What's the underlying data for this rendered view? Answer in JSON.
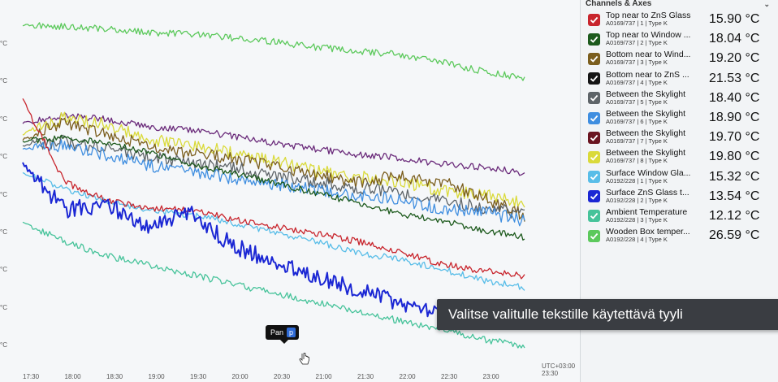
{
  "panel": {
    "title": "Channels & Axes",
    "chevron_icon": "chevron-down-icon",
    "channels": [
      {
        "name": "Top near to ZnS Glass",
        "sub": "A0169/737 | 1 | Type K",
        "value": "15.90 °C",
        "color": "#c8252d"
      },
      {
        "name": "Top near to Window ...",
        "sub": "A0169/737 | 2 | Type K",
        "value": "18.04 °C",
        "color": "#1d5a1d"
      },
      {
        "name": "Bottom near to Wind...",
        "sub": "A0169/737 | 3 | Type K",
        "value": "19.20 °C",
        "color": "#7b5e1e"
      },
      {
        "name": "Bottom near to ZnS ...",
        "sub": "A0169/737 | 4 | Type K",
        "value": "21.53 °C",
        "color": "#141414"
      },
      {
        "name": "Between the Skylight",
        "sub": "A0169/737 | 5 | Type K",
        "value": "18.40 °C",
        "color": "#5e6468"
      },
      {
        "name": "Between the Skylight",
        "sub": "A0169/737 | 6 | Type K",
        "value": "18.90 °C",
        "color": "#3f8ee0"
      },
      {
        "name": "Between the Skylight",
        "sub": "A0169/737 | 7 | Type K",
        "value": "19.70 °C",
        "color": "#6a1420"
      },
      {
        "name": "Between the Skylight",
        "sub": "A0169/737 | 8 | Type K",
        "value": "19.80 °C",
        "color": "#dada3a"
      },
      {
        "name": "Surface Window Gla...",
        "sub": "A0192/228 | 1 | Type K",
        "value": "15.32 °C",
        "color": "#58bde8"
      },
      {
        "name": "Surface ZnS Glass t...",
        "sub": "A0192/228 | 2 | Type K",
        "value": "13.54 °C",
        "color": "#1b27d4"
      },
      {
        "name": "Ambient Temperature",
        "sub": "A0192/228 | 3 | Type K",
        "value": "12.12 °C",
        "color": "#46c39a"
      },
      {
        "name": "Wooden Box temper...",
        "sub": "A0192/228 | 4 | Type K",
        "value": "26.59 °C",
        "color": "#5cc95c"
      }
    ]
  },
  "tooltip": "Valitse valitulle tekstille käytettävä tyyli",
  "pan": {
    "label": "Pan",
    "key": "p"
  },
  "chart_data": {
    "type": "line",
    "x": [
      "17:30",
      "18:00",
      "18:30",
      "19:00",
      "19:30",
      "20:00",
      "20:30",
      "21:00",
      "21:30",
      "22:00",
      "22:30",
      "23:00",
      "23:20"
    ],
    "x_tick_labels": [
      "17:30",
      "18:00",
      "18:30",
      "19:00",
      "19:30",
      "20:00",
      "20:30",
      "21:00",
      "21:30",
      "22:00",
      "22:30",
      "23:00"
    ],
    "x_end_label": [
      "UTC+03:00",
      "23:30"
    ],
    "y_tick_labels": [
      "°C",
      "°C",
      "°C",
      "°C",
      "°C",
      "°C",
      "°C",
      "°C",
      "°C",
      "°C"
    ],
    "series": [
      {
        "name": "Wooden Box temper...",
        "color": "#5cc95c",
        "values": [
          29.5,
          29.4,
          29.3,
          29.1,
          29.0,
          28.8,
          28.6,
          28.3,
          28.1,
          27.9,
          27.5,
          27.0,
          26.6
        ]
      },
      {
        "name": "Bottom near to ZnS ...",
        "color": "#6a2a7a",
        "values": [
          24.2,
          24.6,
          24.4,
          24.0,
          23.8,
          23.5,
          23.1,
          22.8,
          22.5,
          22.3,
          22.0,
          21.8,
          21.5
        ]
      },
      {
        "name": "Between the Skylight",
        "color": "#dada3a",
        "values": [
          23.6,
          24.5,
          24.1,
          23.3,
          23.0,
          22.6,
          22.2,
          21.6,
          21.3,
          21.0,
          20.6,
          20.3,
          19.8
        ]
      },
      {
        "name": "Bottom near to Wind...",
        "color": "#7b5e1e",
        "values": [
          23.3,
          24.2,
          23.6,
          23.0,
          22.5,
          22.3,
          21.9,
          21.4,
          21.0,
          21.3,
          21.0,
          20.2,
          19.2
        ]
      },
      {
        "name": "Between the Skylight",
        "color": "#5e6468",
        "values": [
          23.0,
          23.2,
          22.8,
          22.4,
          22.0,
          21.8,
          21.4,
          21.0,
          20.7,
          20.4,
          20.0,
          19.6,
          19.3
        ]
      },
      {
        "name": "Between the Skylight",
        "color": "#3f8ee0",
        "values": [
          22.8,
          23.0,
          22.5,
          21.9,
          21.6,
          21.2,
          20.9,
          20.6,
          20.3,
          20.0,
          19.6,
          19.4,
          18.9
        ]
      },
      {
        "name": "Top near to Window ...",
        "color": "#1d5a1d",
        "values": [
          23.2,
          23.4,
          23.1,
          22.6,
          22.0,
          21.5,
          21.0,
          20.4,
          19.9,
          19.3,
          18.9,
          18.4,
          18.0
        ]
      },
      {
        "name": "Surface Window Gla...",
        "color": "#58bde8",
        "values": [
          21.5,
          20.6,
          20.0,
          19.5,
          19.2,
          18.8,
          18.3,
          17.8,
          17.2,
          16.8,
          16.3,
          15.7,
          15.3
        ]
      },
      {
        "name": "Top near to ZnS Glass",
        "color": "#c8252d",
        "values": [
          25.5,
          21.0,
          20.0,
          19.6,
          19.5,
          19.0,
          18.6,
          18.2,
          17.8,
          17.2,
          16.6,
          16.2,
          15.9
        ]
      },
      {
        "name": "Surface ZnS Glass t...",
        "color": "#1b27d4",
        "values": [
          22.0,
          19.5,
          19.8,
          18.6,
          19.3,
          17.6,
          16.7,
          15.9,
          15.2,
          14.4,
          13.9,
          13.7,
          13.5
        ]
      },
      {
        "name": "Ambient Temperature",
        "color": "#46c39a",
        "values": [
          18.8,
          17.8,
          17.0,
          16.5,
          16.0,
          15.5,
          15.0,
          14.5,
          14.0,
          13.5,
          13.0,
          12.5,
          12.1
        ]
      }
    ],
    "ylim": [
      11.5,
      30.5
    ]
  }
}
